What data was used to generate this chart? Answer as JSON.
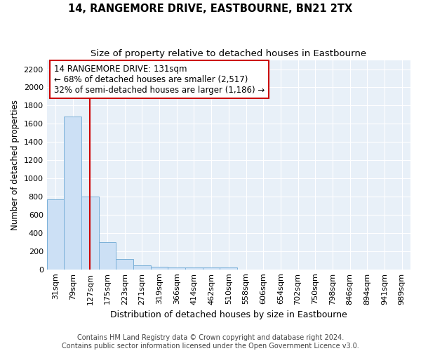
{
  "title": "14, RANGEMORE DRIVE, EASTBOURNE, BN21 2TX",
  "subtitle": "Size of property relative to detached houses in Eastbourne",
  "xlabel": "Distribution of detached houses by size in Eastbourne",
  "ylabel": "Number of detached properties",
  "bar_color": "#cce0f5",
  "bar_edge_color": "#7ab0d8",
  "background_color": "#e8f0f8",
  "grid_color": "#ffffff",
  "categories": [
    "31sqm",
    "79sqm",
    "127sqm",
    "175sqm",
    "223sqm",
    "271sqm",
    "319sqm",
    "366sqm",
    "414sqm",
    "462sqm",
    "510sqm",
    "558sqm",
    "606sqm",
    "654sqm",
    "702sqm",
    "750sqm",
    "798sqm",
    "846sqm",
    "894sqm",
    "941sqm",
    "989sqm"
  ],
  "values": [
    770,
    1680,
    800,
    300,
    110,
    40,
    30,
    20,
    20,
    18,
    20,
    0,
    0,
    0,
    0,
    0,
    0,
    0,
    0,
    0,
    0
  ],
  "property_line_index": 2,
  "annotation_text_line1": "14 RANGEMORE DRIVE: 131sqm",
  "annotation_text_line2": "← 68% of detached houses are smaller (2,517)",
  "annotation_text_line3": "32% of semi-detached houses are larger (1,186) →",
  "annotation_box_color": "#ffffff",
  "annotation_border_color": "#cc0000",
  "red_line_color": "#cc0000",
  "ylim": [
    0,
    2300
  ],
  "yticks": [
    0,
    200,
    400,
    600,
    800,
    1000,
    1200,
    1400,
    1600,
    1800,
    2000,
    2200
  ],
  "footer_text": "Contains HM Land Registry data © Crown copyright and database right 2024.\nContains public sector information licensed under the Open Government Licence v3.0.",
  "title_fontsize": 10.5,
  "subtitle_fontsize": 9.5,
  "xlabel_fontsize": 9,
  "ylabel_fontsize": 8.5,
  "tick_fontsize": 8,
  "annotation_fontsize": 8.5,
  "footer_fontsize": 7
}
